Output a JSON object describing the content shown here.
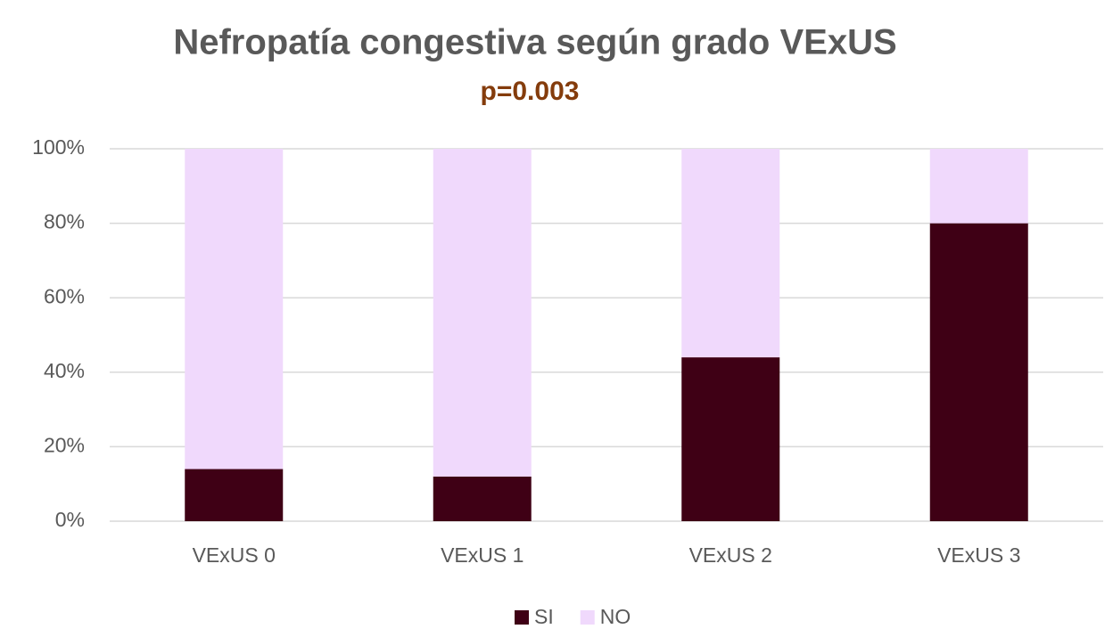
{
  "chart_data": {
    "type": "stacked_bar",
    "title": "Nefropatía congestiva según grado VExUS",
    "subtitle": "p=0.003",
    "categories": [
      "VExUS 0",
      "VExUS 1",
      "VExUS 2",
      "VExUS 3"
    ],
    "series": [
      {
        "name": "SI",
        "color": "#3f0015",
        "values": [
          14,
          12,
          44,
          80
        ]
      },
      {
        "name": "NO",
        "color": "#f0d9fc",
        "values": [
          86,
          88,
          56,
          20
        ]
      }
    ],
    "ylim": [
      0,
      100
    ],
    "yticks": [
      {
        "value": 0,
        "label": "0%"
      },
      {
        "value": 20,
        "label": "20%"
      },
      {
        "value": 40,
        "label": "40%"
      },
      {
        "value": 60,
        "label": "60%"
      },
      {
        "value": 80,
        "label": "80%"
      },
      {
        "value": 100,
        "label": "100%"
      }
    ],
    "grid": true,
    "legend": "bottom"
  }
}
